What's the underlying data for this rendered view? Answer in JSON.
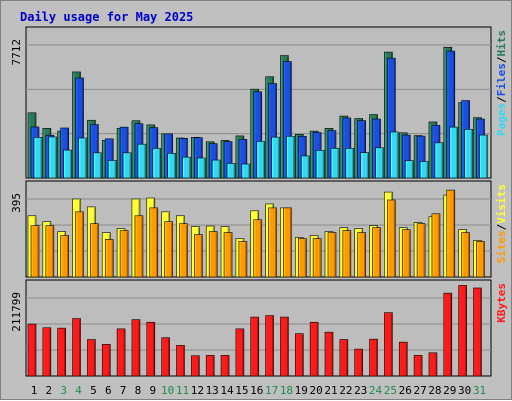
{
  "colors": {
    "background": "#c0c0c0",
    "panel": "#bdbdbd",
    "gridline": "#8c8c8c",
    "title": "#0000cc",
    "hits": "#2a7a5a",
    "files": "#1a4fe0",
    "pages": "#33d8f0",
    "visits": "#ffff33",
    "sites": "#ff9900",
    "kbytes": "#ff1a1a",
    "weekend_label": "#1f8a4c",
    "weekday_label": "#000000"
  },
  "chart_data": {
    "type": "bar",
    "title": "Daily usage for May 2025",
    "x": {
      "categories": [
        "1",
        "2",
        "3",
        "4",
        "5",
        "6",
        "7",
        "8",
        "9",
        "10",
        "11",
        "12",
        "13",
        "14",
        "15",
        "16",
        "17",
        "18",
        "19",
        "20",
        "21",
        "22",
        "23",
        "24",
        "25",
        "26",
        "27",
        "28",
        "29",
        "30",
        "31"
      ],
      "weekend": [
        false,
        false,
        true,
        true,
        false,
        false,
        false,
        false,
        false,
        true,
        true,
        false,
        false,
        false,
        false,
        false,
        true,
        true,
        false,
        false,
        false,
        false,
        false,
        true,
        true,
        false,
        false,
        false,
        false,
        false,
        true
      ]
    },
    "panels": [
      {
        "id": "traffic",
        "ytick_label": "7712",
        "ymax": 7712,
        "legend": [
          {
            "label": "Pages",
            "series": "pages"
          },
          {
            "sep": "/"
          },
          {
            "label": "Files",
            "series": "files"
          },
          {
            "sep": "/"
          },
          {
            "label": "Hits",
            "series": "hits"
          }
        ],
        "series": [
          {
            "name": "Hits",
            "key": "hits",
            "values": [
              3780,
              2880,
              2720,
              6150,
              3350,
              2180,
              2880,
              3320,
              3080,
              2560,
              2320,
              2360,
              2100,
              2180,
              2440,
              5150,
              5870,
              7100,
              2530,
              2720,
              2880,
              3590,
              3450,
              3680,
              7300,
              2620,
              2460,
              3250,
              7580,
              4370,
              3500
            ]
          },
          {
            "name": "Files",
            "key": "files",
            "values": [
              2960,
              2480,
              2900,
              5800,
              3100,
              2270,
              2950,
              3150,
              2920,
              2560,
              2300,
              2340,
              1990,
              2110,
              2240,
              5000,
              5480,
              6750,
              2420,
              2640,
              2750,
              3480,
              3330,
              3420,
              6950,
              2490,
              2430,
              3050,
              7360,
              4490,
              3420
            ]
          },
          {
            "name": "Pages",
            "key": "pages",
            "values": [
              2360,
              2380,
              1620,
              2320,
              1460,
              1020,
              1460,
              1960,
              1720,
              1430,
              1210,
              1160,
              1040,
              850,
              810,
              2120,
              2370,
              2420,
              1280,
              1600,
              1720,
              1720,
              1470,
              1750,
              2670,
              1010,
              960,
              2040,
              2950,
              2820,
              2490
            ]
          }
        ]
      },
      {
        "id": "visitors",
        "ytick_label": "395",
        "ymax": 395,
        "legend": [
          {
            "label": "Sites",
            "series": "sites"
          },
          {
            "sep": "/"
          },
          {
            "label": "Visits",
            "series": "visits"
          }
        ],
        "series": [
          {
            "name": "Visits",
            "key": "visits",
            "values": [
              310,
              280,
              230,
              395,
              355,
              225,
              245,
              395,
              400,
              330,
              310,
              255,
              258,
              255,
              195,
              335,
              370,
              350,
              200,
              210,
              230,
              250,
              245,
              260,
              430,
              250,
              275,
              305,
              415,
              240,
              185
            ]
          },
          {
            "name": "Sites",
            "key": "sites",
            "values": [
              260,
              260,
              210,
              330,
              270,
              190,
              235,
              310,
              350,
              280,
              270,
              215,
              230,
              225,
              180,
              290,
              350,
              350,
              195,
              195,
              225,
              235,
              225,
              250,
              390,
              240,
              270,
              320,
              440,
              225,
              180
            ]
          }
        ]
      },
      {
        "id": "volume",
        "ytick_label": "211799",
        "ymax": 211799,
        "legend": [
          {
            "label": "KBytes",
            "series": "kbytes"
          }
        ],
        "series": [
          {
            "name": "KBytes",
            "key": "kbytes",
            "values": [
              141000,
              131000,
              130000,
              156000,
              99000,
              86000,
              128000,
              153000,
              146000,
              104000,
              83000,
              55000,
              56000,
              56000,
              128000,
              160000,
              164000,
              160000,
              115000,
              146000,
              119000,
              99000,
              73000,
              100000,
              172000,
              92000,
              56000,
              63000,
              225000,
              246000,
              239000
            ]
          }
        ]
      }
    ]
  }
}
